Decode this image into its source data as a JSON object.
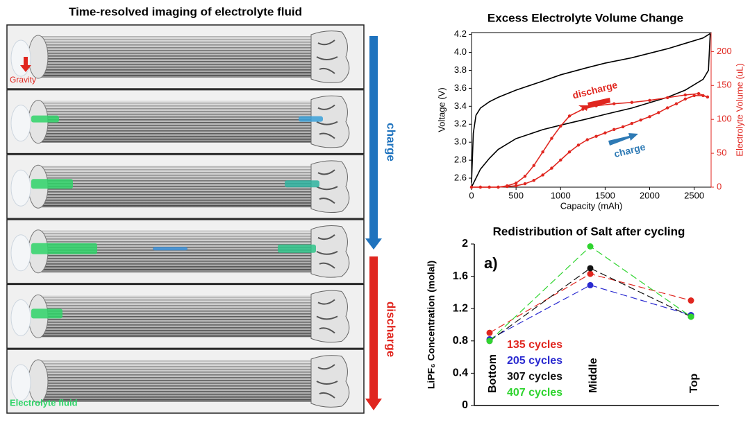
{
  "image_panel": {
    "title": "Time-resolved imaging of electrolyte fluid",
    "gravity_label": "Gravity",
    "fluid_label": "Electrolyte fluid",
    "charge_label": "charge",
    "discharge_label": "discharge"
  },
  "chart_data": [
    {
      "type": "line",
      "title": "Excess Electrolyte Volume Change",
      "x_label": "Capacity (mAh)",
      "y_label": "Voltage (V)",
      "y2_label": "Electrolyte Volume (uL)",
      "y2_color": "#e0261f",
      "xlim": [
        0,
        2690
      ],
      "xticks": [
        0,
        500,
        1000,
        1500,
        2000,
        2500
      ],
      "ylim": [
        2.5,
        4.22
      ],
      "yticks": [
        2.6,
        2.8,
        {
          "value": 3,
          "label": "3.0"
        },
        3.2,
        3.4,
        3.6,
        3.8,
        {
          "value": 4,
          "label": "4.0"
        },
        4.2
      ],
      "y2lim": [
        0,
        228
      ],
      "y2ticks": [
        0,
        50,
        100,
        150,
        200
      ],
      "series": [
        {
          "color": "#000000",
          "x": [
            0,
            20,
            50,
            100,
            200,
            300,
            500,
            800,
            1000,
            1300,
            1500,
            1800,
            2000,
            2200,
            2400,
            2600,
            2680
          ],
          "values": [
            2.55,
            3.1,
            3.3,
            3.38,
            3.45,
            3.5,
            3.58,
            3.68,
            3.75,
            3.83,
            3.88,
            3.94,
            3.99,
            4.04,
            4.1,
            4.16,
            4.21
          ]
        },
        {
          "color": "#000000",
          "x": [
            0,
            100,
            200,
            300,
            500,
            800,
            1000,
            1300,
            1500,
            1800,
            2000,
            2200,
            2400,
            2600,
            2660,
            2680
          ],
          "values": [
            2.5,
            2.7,
            2.82,
            2.92,
            3.04,
            3.14,
            3.19,
            3.26,
            3.31,
            3.38,
            3.44,
            3.5,
            3.58,
            3.7,
            3.8,
            4.21
          ]
        },
        {
          "color": "#e0261f",
          "axis": "y2",
          "markers": true,
          "x": [
            0,
            100,
            200,
            300,
            400,
            500,
            600,
            700,
            800,
            900,
            1000,
            1100,
            1200,
            1300,
            1400,
            1500,
            1600,
            1700,
            1800,
            1900,
            2000,
            2100,
            2200,
            2300,
            2400,
            2500,
            2600,
            2650
          ],
          "values": [
            0,
            0,
            0,
            0,
            1,
            2,
            5,
            10,
            18,
            28,
            40,
            52,
            62,
            70,
            75,
            80,
            85,
            89,
            94,
            99,
            104,
            110,
            117,
            123,
            130,
            135,
            135,
            133
          ]
        },
        {
          "color": "#e0261f",
          "axis": "y2",
          "markers": true,
          "x": [
            2650,
            2550,
            2400,
            2200,
            2000,
            1800,
            1600,
            1400,
            1250,
            1100,
            1000,
            900,
            800,
            700,
            600,
            500,
            400,
            300,
            200,
            100,
            0
          ],
          "values": [
            133,
            138,
            136,
            132,
            128,
            125,
            123,
            120,
            115,
            105,
            90,
            72,
            52,
            32,
            16,
            6,
            2,
            0,
            0,
            0,
            0
          ]
        }
      ],
      "annotations": [
        {
          "text": "discharge",
          "color": "#e0261f"
        },
        {
          "text": "charge",
          "color": "#2e7ab5"
        }
      ]
    },
    {
      "type": "line",
      "title": "Redistribution of Salt after cycling",
      "y_label": "LiPF₆ Concentration (molal)",
      "panel_label": "a)",
      "categories": [
        "Bottom",
        "Middle",
        "Top"
      ],
      "ylim": [
        0,
        2
      ],
      "yticks": [
        0,
        0.4,
        0.8,
        1.2,
        1.6,
        2
      ],
      "line_style": "dashed",
      "series": [
        {
          "name": "135 cycles",
          "color": "#e0261f",
          "values": [
            0.9,
            1.63,
            1.3
          ]
        },
        {
          "name": "205 cycles",
          "color": "#2a2ad0",
          "values": [
            0.82,
            1.49,
            1.12
          ]
        },
        {
          "name": "307 cycles",
          "color": "#111111",
          "values": [
            0.8,
            1.7,
            1.1
          ]
        },
        {
          "name": "407 cycles",
          "color": "#2fd42f",
          "values": [
            0.8,
            1.97,
            1.1
          ]
        }
      ]
    }
  ]
}
